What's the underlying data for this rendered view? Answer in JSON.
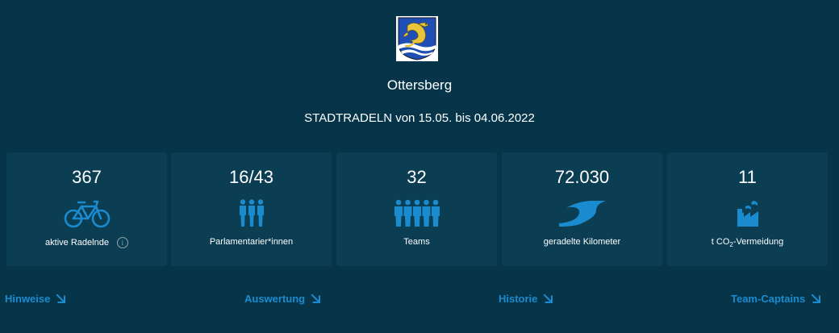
{
  "header": {
    "city": "Ottersberg",
    "period": "STADTRADELN von 15.05. bis 04.06.2022"
  },
  "colors": {
    "background": "#06354a",
    "card": "#0b3d53",
    "accent": "#1a8bcf",
    "text": "#ffffff"
  },
  "stats": [
    {
      "value": "367",
      "label": "aktive Radelnde",
      "icon": "bicycle-icon",
      "has_info": true
    },
    {
      "value": "16/43",
      "label": "Parlamentarier*innen",
      "icon": "parliamentarians-icon"
    },
    {
      "value": "32",
      "label": "Teams",
      "icon": "team-icon"
    },
    {
      "value": "72.030",
      "label": "geradelte Kilometer",
      "icon": "road-icon"
    },
    {
      "value": "11",
      "label_prefix": "t CO",
      "label_sub": "2",
      "label_suffix": "-Vermeidung",
      "icon": "factory-icon"
    }
  ],
  "links": [
    {
      "label": "Hinweise",
      "icon": "arrow-down-right-icon"
    },
    {
      "label": "Auswertung",
      "icon": "arrow-down-right-icon"
    },
    {
      "label": "Historie",
      "icon": "arrow-down-right-icon"
    },
    {
      "label": "Team-Captains",
      "icon": "arrow-down-right-icon"
    }
  ]
}
